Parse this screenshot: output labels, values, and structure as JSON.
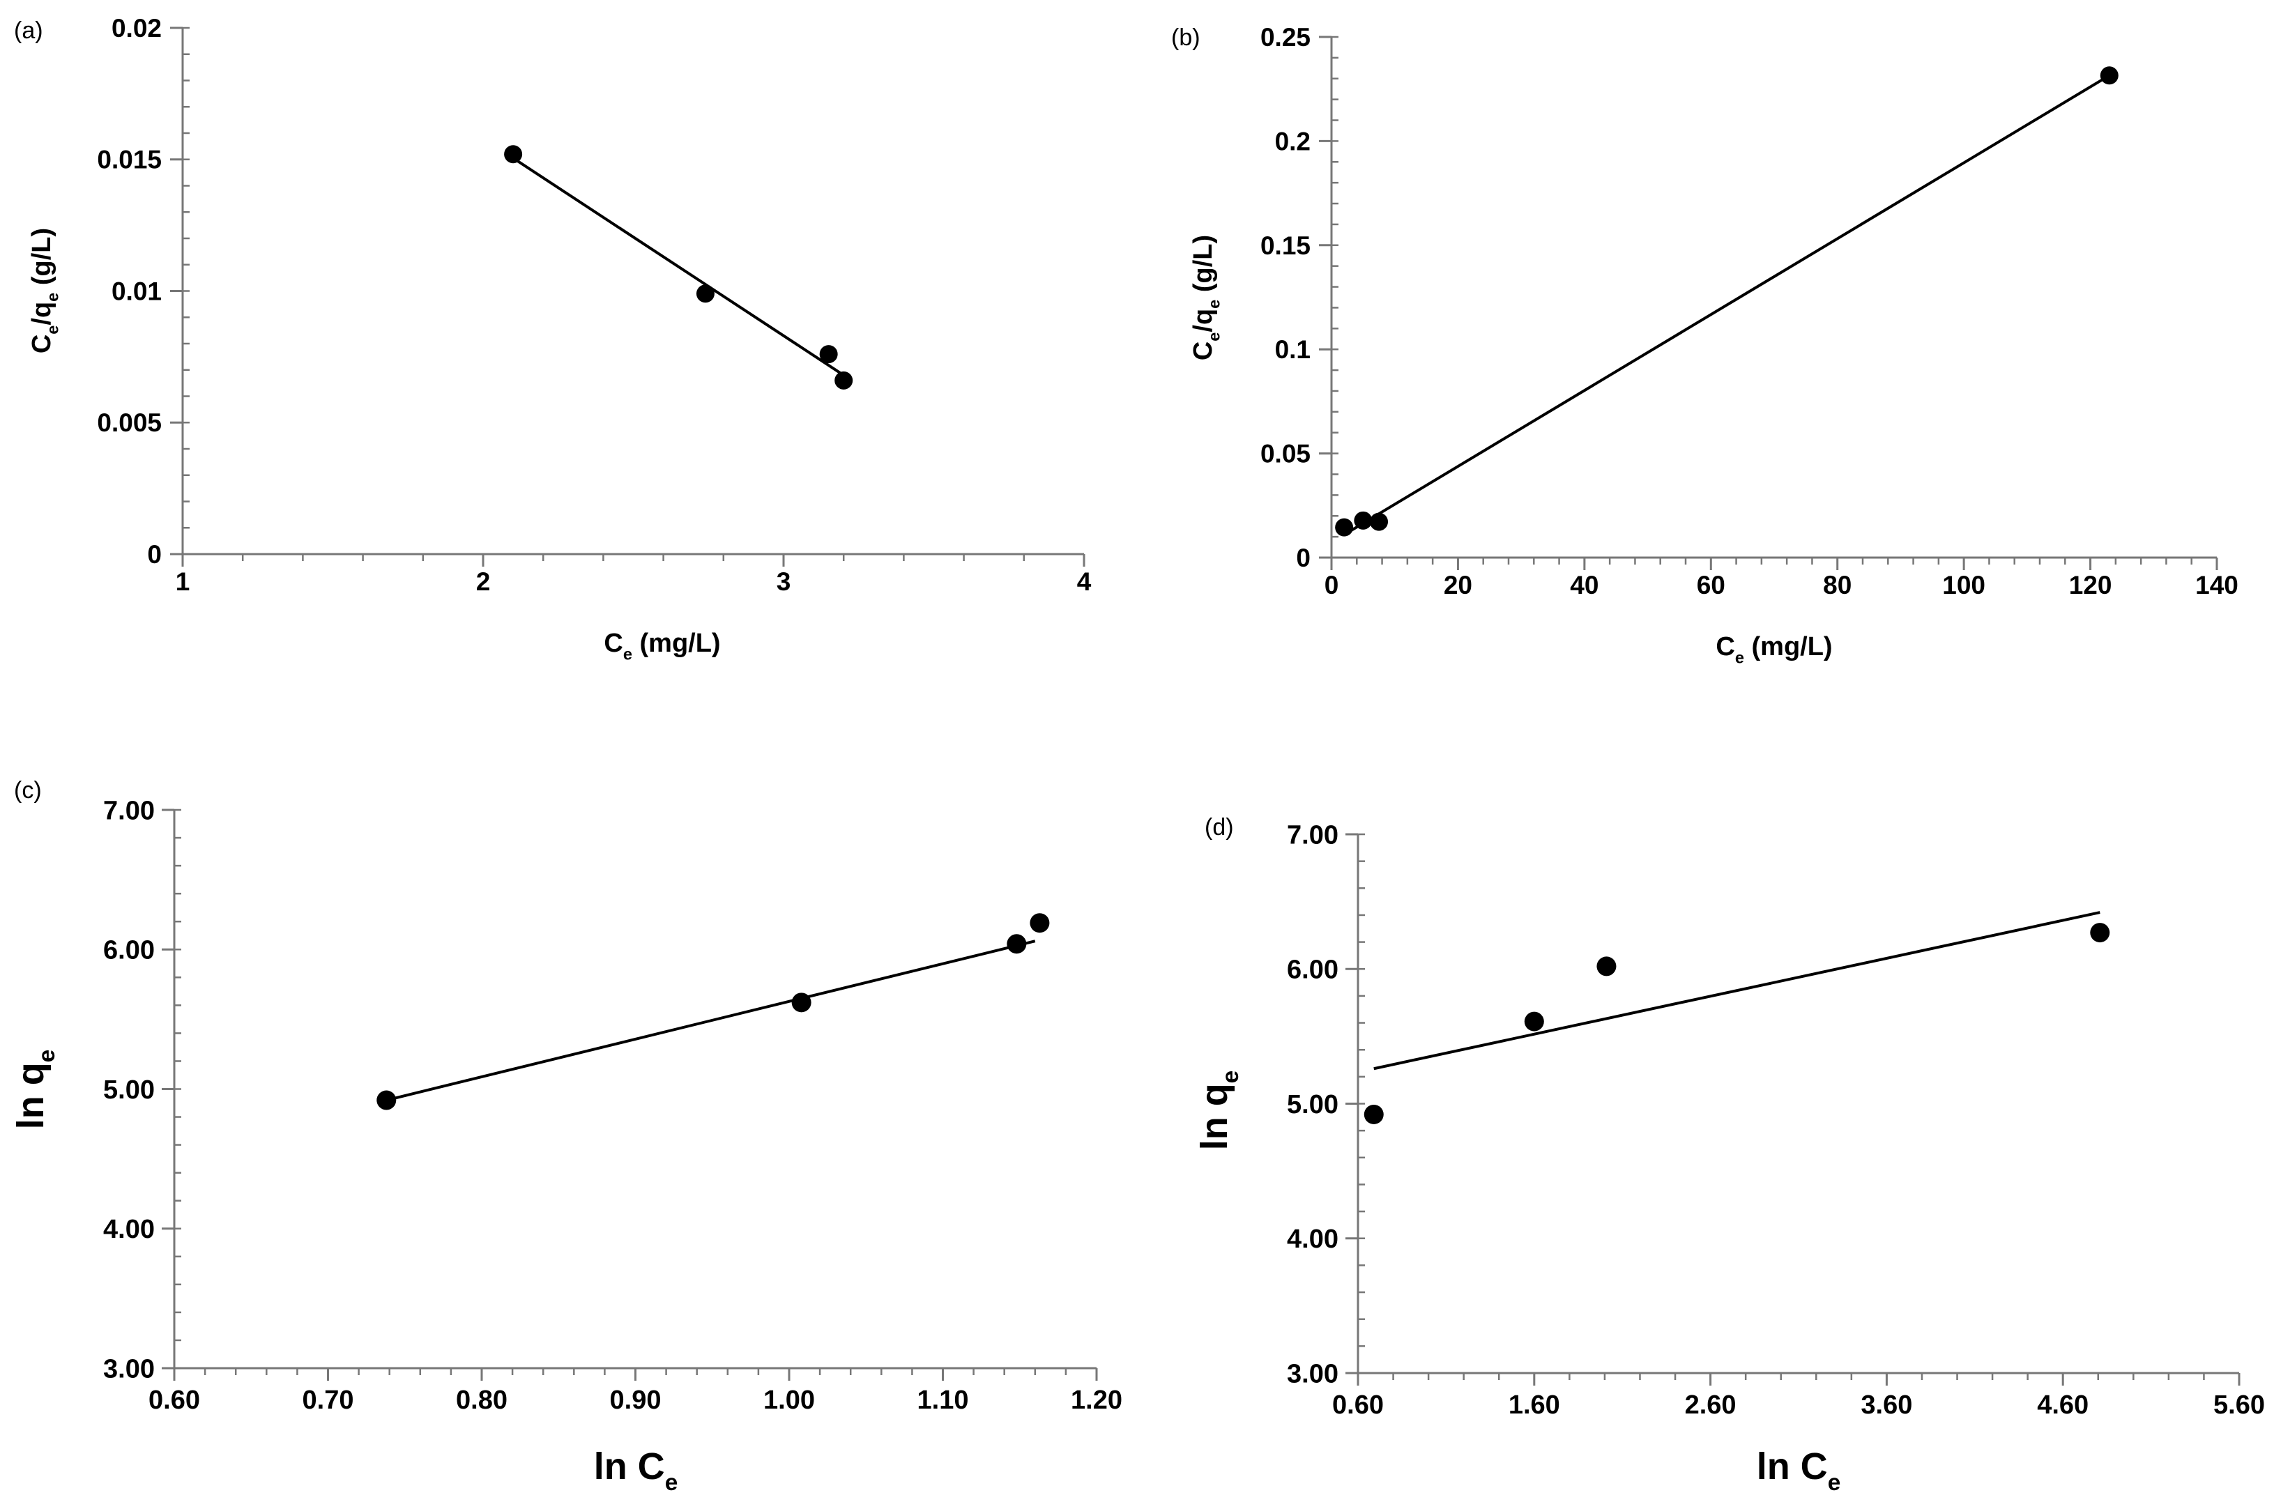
{
  "chart_data": [
    {
      "panel": "(a)",
      "type": "scatter",
      "title": "",
      "xlabel": {
        "base": "C",
        "sub": "e",
        "rest": " (mg/L)"
      },
      "ylabel": {
        "parts": [
          {
            "t": "C"
          },
          {
            "t": "e",
            "sub": true
          },
          {
            "t": "/q"
          },
          {
            "t": "e",
            "sub": true
          },
          {
            "t": " (g/L)"
          }
        ]
      },
      "xlim": [
        1,
        4
      ],
      "ylim": [
        0,
        0.02
      ],
      "xticks": [
        "1",
        "2",
        "3",
        "4"
      ],
      "yticks": [
        "0",
        "0.005",
        "0.01",
        "0.015",
        "0.02"
      ],
      "x_minor_step": 0.2,
      "y_minor_step": 0.001,
      "points": [
        [
          2.1,
          0.0152
        ],
        [
          2.74,
          0.0099
        ],
        [
          3.15,
          0.0076
        ],
        [
          3.2,
          0.0066
        ]
      ],
      "fit_line": [
        [
          2.08,
          0.0152
        ],
        [
          3.2,
          0.0068
        ]
      ],
      "grid": false,
      "legend": "none"
    },
    {
      "panel": "(b)",
      "type": "scatter",
      "title": "",
      "xlabel": {
        "base": "C",
        "sub": "e",
        "rest": " (mg/L)"
      },
      "ylabel": {
        "parts": [
          {
            "t": "C"
          },
          {
            "t": "e",
            "sub": true
          },
          {
            "t": "/q"
          },
          {
            "t": "e",
            "sub": true
          },
          {
            "t": " (g/L)"
          }
        ]
      },
      "xlim": [
        0,
        140
      ],
      "ylim": [
        0,
        0.25
      ],
      "xticks": [
        "0",
        "20",
        "40",
        "60",
        "80",
        "100",
        "120",
        "140"
      ],
      "yticks": [
        "0",
        "0.05",
        "0.1",
        "0.15",
        "0.2",
        "0.25"
      ],
      "x_minor_step": 4,
      "y_minor_step": 0.01,
      "points": [
        [
          2,
          0.0145
        ],
        [
          5,
          0.0178
        ],
        [
          7.5,
          0.0172
        ],
        [
          123,
          0.2315
        ]
      ],
      "fit_line": [
        [
          2,
          0.011
        ],
        [
          123,
          0.2315
        ]
      ],
      "grid": false,
      "legend": "none"
    },
    {
      "panel": "(c)",
      "type": "scatter",
      "title": "",
      "xlabel": {
        "base": "ln C",
        "sub": "e",
        "rest": ""
      },
      "ylabel": {
        "parts": [
          {
            "t": "ln q"
          },
          {
            "t": "e",
            "sub": true
          }
        ]
      },
      "xlim": [
        0.6,
        1.2
      ],
      "ylim": [
        3.0,
        7.0
      ],
      "xticks": [
        "0.60",
        "0.70",
        "0.80",
        "0.90",
        "1.00",
        "1.10",
        "1.20"
      ],
      "yticks": [
        "3.00",
        "4.00",
        "5.00",
        "6.00",
        "7.00"
      ],
      "x_minor_step": 0.02,
      "y_minor_step": 0.2,
      "points": [
        [
          0.738,
          4.92
        ],
        [
          1.008,
          5.62
        ],
        [
          1.148,
          6.04
        ],
        [
          1.163,
          6.19
        ]
      ],
      "fit_line": [
        [
          0.738,
          4.92
        ],
        [
          1.16,
          6.06
        ]
      ],
      "grid": false,
      "legend": "none"
    },
    {
      "panel": "(d)",
      "type": "scatter",
      "title": "",
      "xlabel": {
        "base": "ln C",
        "sub": "e",
        "rest": ""
      },
      "ylabel": {
        "parts": [
          {
            "t": "ln q"
          },
          {
            "t": "e",
            "sub": true
          }
        ]
      },
      "xlim": [
        0.6,
        5.6
      ],
      "ylim": [
        3.0,
        7.0
      ],
      "xticks": [
        "0.60",
        "1.60",
        "2.60",
        "3.60",
        "4.60",
        "5.60"
      ],
      "yticks": [
        "3.00",
        "4.00",
        "5.00",
        "6.00",
        "7.00"
      ],
      "x_minor_step": 0.2,
      "y_minor_step": 0.2,
      "points": [
        [
          0.69,
          4.92
        ],
        [
          1.6,
          5.61
        ],
        [
          2.01,
          6.02
        ],
        [
          4.81,
          6.27
        ]
      ],
      "fit_line": [
        [
          0.69,
          5.26
        ],
        [
          4.81,
          6.42
        ]
      ],
      "grid": false,
      "legend": "none"
    }
  ]
}
